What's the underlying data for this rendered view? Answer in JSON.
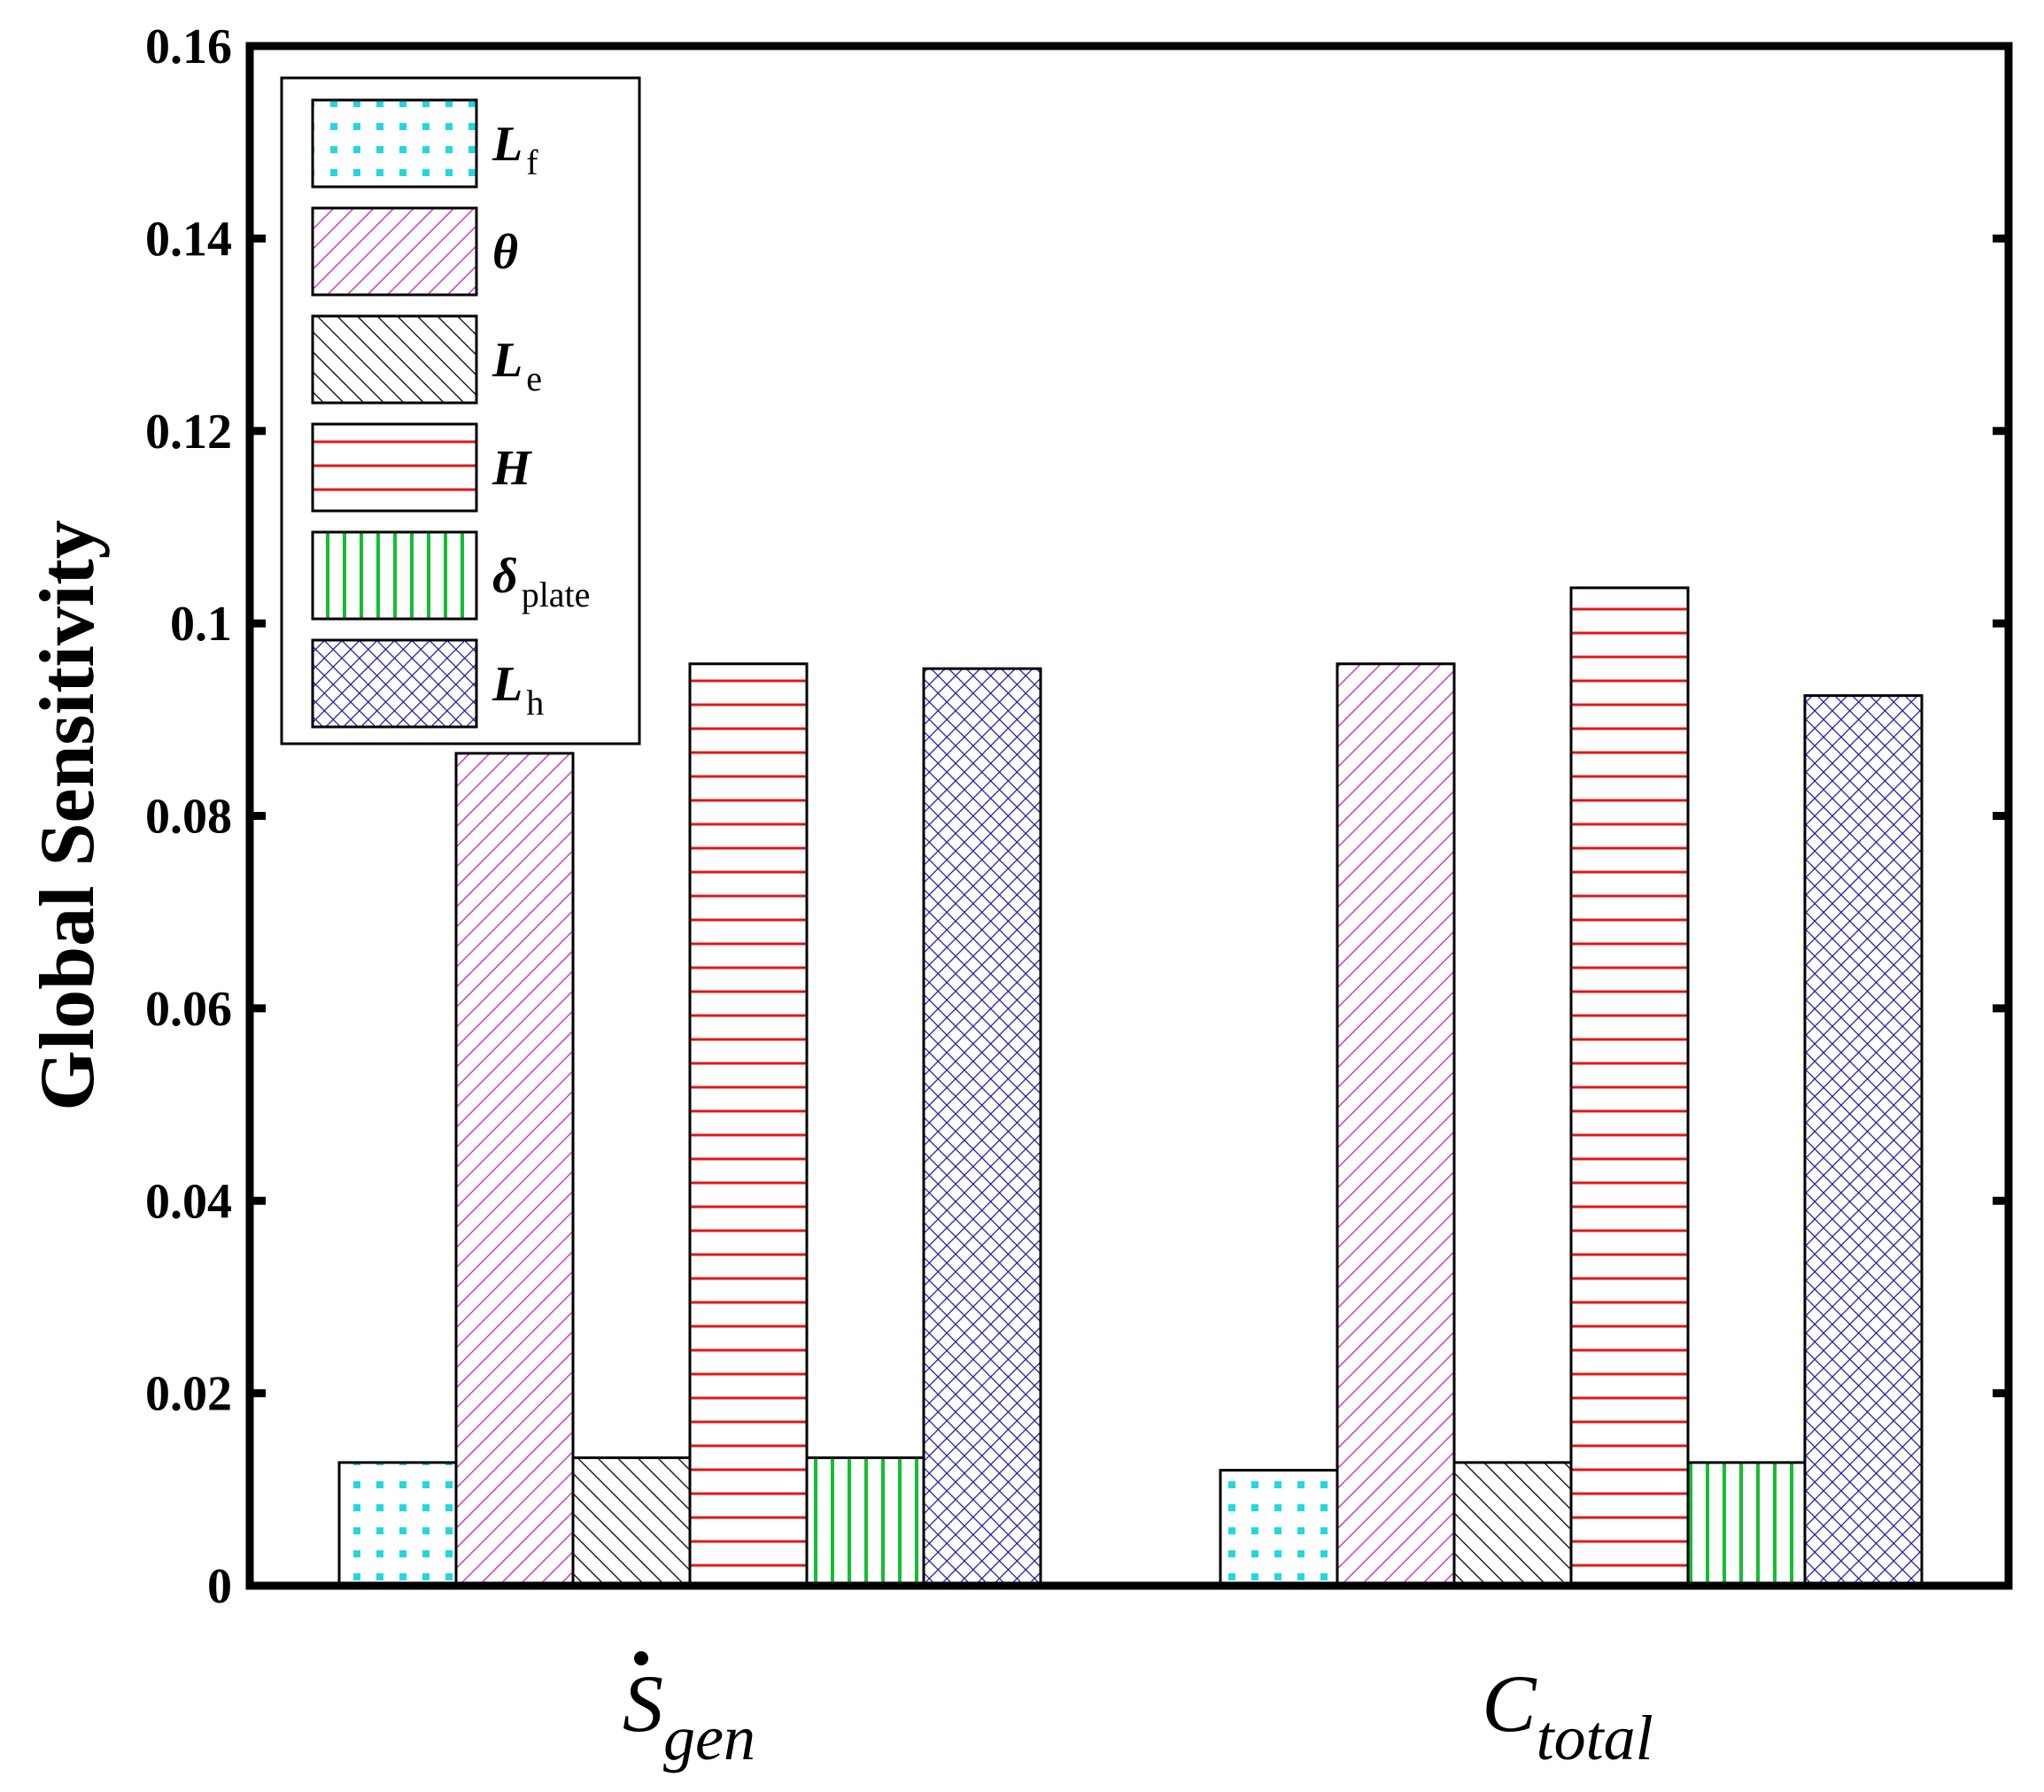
{
  "chart_data": {
    "type": "bar",
    "title": "",
    "xlabel": "",
    "ylabel": "Global Sensitivity",
    "ylim": [
      0,
      0.16
    ],
    "yticks": [
      0,
      0.02,
      0.04,
      0.06,
      0.08,
      0.1,
      0.12,
      0.14,
      0.16
    ],
    "ytick_labels": [
      "0",
      "0.02",
      "0.04",
      "0.06",
      "0.08",
      "0.1",
      "0.12",
      "0.14",
      "0.16"
    ],
    "grid": false,
    "legend_position": "top-left",
    "categories": [
      {
        "main": "S",
        "sub": "gen",
        "dot": true
      },
      {
        "main": "C",
        "sub": "total",
        "dot": false
      }
    ],
    "series": [
      {
        "key": "Lf",
        "main": "L",
        "sub": "f",
        "values": [
          0.0128,
          0.012
        ],
        "color": "#22d8e0",
        "pattern": "dots"
      },
      {
        "key": "theta",
        "main": "θ",
        "sub": "",
        "values": [
          0.0865,
          0.0958
        ],
        "color": "#d03cc8",
        "pattern": "diag-back"
      },
      {
        "key": "Le",
        "main": "L",
        "sub": "e",
        "values": [
          0.0133,
          0.0128
        ],
        "color": "#222222",
        "pattern": "diag-fwd"
      },
      {
        "key": "H",
        "main": "H",
        "sub": "",
        "values": [
          0.0958,
          0.1037
        ],
        "color": "#e01818",
        "pattern": "horizontal"
      },
      {
        "key": "delta_plate",
        "main": "δ",
        "sub": "plate",
        "values": [
          0.0133,
          0.0128
        ],
        "color": "#10c030",
        "pattern": "vertical"
      },
      {
        "key": "Lh",
        "main": "L",
        "sub": "h",
        "values": [
          0.0953,
          0.0925
        ],
        "color": "#1a1aa8",
        "pattern": "crosshatch"
      }
    ]
  }
}
